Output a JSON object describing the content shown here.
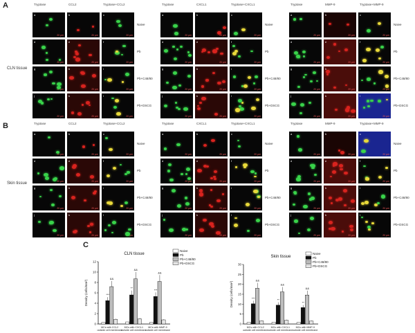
{
  "panel_letters": {
    "a": "A",
    "b": "B",
    "c": "C"
  },
  "section_labels": {
    "cln": "CLN tissue",
    "skin": "Skin tissue"
  },
  "groups": [
    "Naive",
    "Pb",
    "Pb+C48/80",
    "Pb+DSCG"
  ],
  "row_labels_A": [
    "Naive",
    "Pb",
    "Pb+C48/80",
    "Pb+DSCG"
  ],
  "row_labels_B": [
    "Naive",
    "Pb",
    "Pb+C48/80",
    "Pb+DSCG"
  ],
  "column_sets": [
    {
      "h1": "Tryptase",
      "h2": "CCL2",
      "h3": "Tryptase+CCL2"
    },
    {
      "h1": "Tryptase",
      "h2": "CXCL1",
      "h3": "Tryptase+CXCL1"
    },
    {
      "h1": "Tryptase",
      "h2": "MMP-9",
      "h3": "Tryptase+MMP-9"
    }
  ],
  "scale_bar": "20 µm",
  "sub_letters": [
    "a",
    "b",
    "c",
    "d",
    "e",
    "f",
    "g",
    "h",
    "i",
    "j",
    "k",
    "l"
  ],
  "colors": {
    "green": "#39d34a",
    "red": "#d8231e",
    "yellow": "#e8d93a",
    "blue": "#2936c8",
    "naive": "#ffffff",
    "pb": "#111111",
    "c4880": "#bdbdbd",
    "dscg": "#e6e6e6"
  },
  "chart_data": [
    {
      "type": "bar",
      "title": "CLN tissue",
      "ylabel": "Density (cells/mm²)",
      "ylim": [
        0,
        12
      ],
      "yticks": [
        0,
        2,
        4,
        6,
        8,
        10,
        12
      ],
      "categories": [
        "MCs with CCL2 outside cell membrane",
        "MCs with CXCL1 outside cell membrane",
        "MCs with MMP-9 outside cell membrane"
      ],
      "series": [
        {
          "name": "Naive",
          "values": [
            0.3,
            0.4,
            0.3
          ]
        },
        {
          "name": "Pb",
          "values": [
            4.5,
            5.6,
            5.3
          ]
        },
        {
          "name": "Pb+C48/80",
          "values": [
            7.2,
            8.7,
            8.2
          ]
        },
        {
          "name": "Pb+DSCG",
          "values": [
            0.9,
            1.0,
            0.8
          ]
        }
      ],
      "annotations": [
        "***",
        "&&",
        "**",
        "&&",
        "***",
        "&&"
      ],
      "legend": "top-right"
    },
    {
      "type": "bar",
      "title": "Skin tissue",
      "ylabel": "Density (cells/mm²)",
      "ylim": [
        0,
        30
      ],
      "yticks": [
        0,
        5,
        10,
        15,
        20,
        25,
        30
      ],
      "categories": [
        "MCs with CCL2 outside cell membrane",
        "MCs with CXCL1 outside cell membrane",
        "MCs with MMP-9 outside cell membrane"
      ],
      "series": [
        {
          "name": "Naive",
          "values": [
            0.8,
            0.9,
            0.8
          ]
        },
        {
          "name": "Pb",
          "values": [
            10.2,
            9.5,
            8.3
          ]
        },
        {
          "name": "Pb+C48/80",
          "values": [
            18.0,
            16.2,
            14.6
          ]
        },
        {
          "name": "Pb+DSCG",
          "values": [
            1.6,
            1.9,
            1.5
          ]
        }
      ],
      "annotations": [
        "***",
        "&&",
        "**",
        "&&",
        "**",
        "&&"
      ],
      "legend": "top-right"
    }
  ]
}
